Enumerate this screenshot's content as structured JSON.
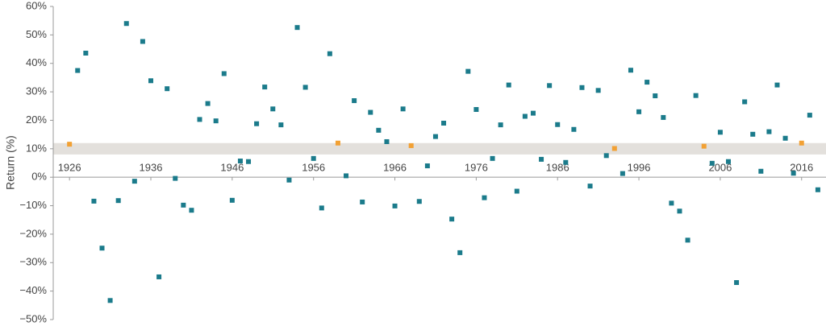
{
  "chart_data": {
    "type": "scatter",
    "y_label": "Return (%)",
    "x": [
      1926,
      1927,
      1928,
      1929,
      1930,
      1931,
      1932,
      1933,
      1934,
      1935,
      1936,
      1937,
      1938,
      1939,
      1940,
      1941,
      1942,
      1943,
      1944,
      1945,
      1946,
      1947,
      1948,
      1949,
      1950,
      1951,
      1952,
      1953,
      1954,
      1955,
      1956,
      1957,
      1958,
      1959,
      1960,
      1961,
      1962,
      1963,
      1964,
      1965,
      1966,
      1967,
      1968,
      1969,
      1970,
      1971,
      1972,
      1973,
      1974,
      1975,
      1976,
      1977,
      1978,
      1979,
      1980,
      1981,
      1982,
      1983,
      1984,
      1985,
      1986,
      1987,
      1988,
      1989,
      1990,
      1991,
      1992,
      1993,
      1994,
      1995,
      1996,
      1997,
      1998,
      1999,
      2000,
      2001,
      2002,
      2003,
      2004,
      2005,
      2006,
      2007,
      2008,
      2009,
      2010,
      2011,
      2012,
      2013,
      2014,
      2015,
      2016,
      2017,
      2018
    ],
    "values": [
      11.6,
      37.5,
      43.6,
      -8.4,
      -24.9,
      -43.3,
      -8.2,
      54,
      -1.4,
      47.7,
      33.9,
      -35,
      31.1,
      -0.4,
      -9.8,
      -11.6,
      20.3,
      25.9,
      19.8,
      36.4,
      -8.1,
      5.7,
      5.5,
      18.8,
      31.7,
      24,
      18.4,
      -1,
      52.6,
      31.6,
      6.6,
      -10.8,
      43.4,
      12,
      0.5,
      26.9,
      -8.7,
      22.8,
      16.5,
      12.5,
      -10.1,
      24,
      11.1,
      -8.5,
      4,
      14.3,
      19,
      -14.7,
      -26.5,
      37.2,
      23.8,
      -7.2,
      6.6,
      18.4,
      32.4,
      -4.9,
      21.4,
      22.5,
      6.3,
      32.2,
      18.5,
      5.2,
      16.8,
      31.5,
      -3.1,
      30.5,
      7.6,
      10.1,
      1.3,
      37.6,
      23,
      33.4,
      28.6,
      21,
      -9.1,
      -11.9,
      -22.1,
      28.7,
      10.9,
      4.9,
      15.8,
      5.5,
      -37,
      26.5,
      15.1,
      2.1,
      16,
      32.4,
      13.7,
      1.4,
      12,
      21.8,
      -4.4
    ],
    "color": "#1b7b8b",
    "highlight_color": "#f2a134",
    "band": [
      8,
      12
    ],
    "band_color": "#e3e0dc",
    "xlim": [
      1924,
      2019
    ],
    "xticks": [
      1926,
      1936,
      1946,
      1956,
      1966,
      1976,
      1986,
      1996,
      2006,
      2016
    ],
    "ylim": [
      -50,
      60
    ],
    "yticks": [
      {
        "value": -50,
        "label": "−50%"
      },
      {
        "value": -40,
        "label": "−40%"
      },
      {
        "value": -30,
        "label": "−30%"
      },
      {
        "value": -20,
        "label": "−20%"
      },
      {
        "value": -10,
        "label": "−10%"
      },
      {
        "value": 0,
        "label": "0%"
      },
      {
        "value": 10,
        "label": "10%"
      },
      {
        "value": 20,
        "label": "20%"
      },
      {
        "value": 30,
        "label": "30%"
      },
      {
        "value": 40,
        "label": "40%"
      },
      {
        "value": 50,
        "label": "50%"
      },
      {
        "value": 60,
        "label": "60%"
      }
    ]
  }
}
